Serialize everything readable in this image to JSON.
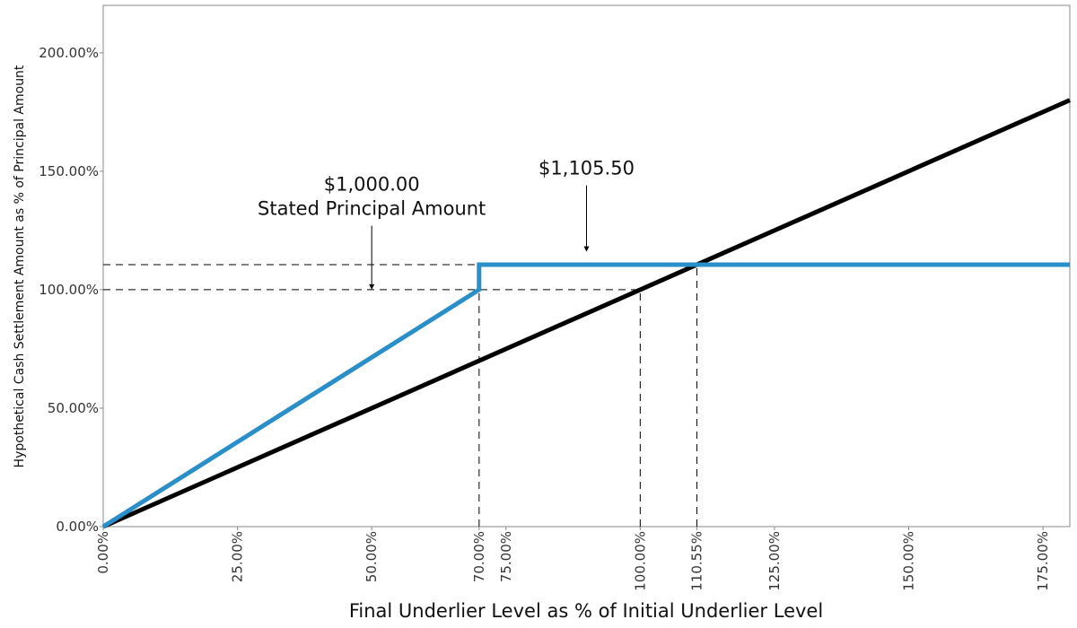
{
  "chart_data": {
    "type": "line",
    "xlabel": "Final Underlier Level as % of Initial Underlier Level",
    "ylabel": "Hypothetical Cash Settlement Amount as % of Principal Amount",
    "xlim": [
      0,
      180
    ],
    "ylim": [
      0,
      220
    ],
    "x_ticks": [
      0,
      25,
      50,
      70,
      75,
      100,
      110.55,
      125,
      150,
      175
    ],
    "x_tick_labels": [
      "0.00%",
      "25.00%",
      "50.00%",
      "70.00%",
      "75.00%",
      "100.00%",
      "110.55%",
      "125.00%",
      "150.00%",
      "175.00%"
    ],
    "y_ticks": [
      0,
      50,
      100,
      150,
      200
    ],
    "y_tick_labels": [
      "0.00%",
      "50.00%",
      "100.00%",
      "150.00%",
      "200.00%"
    ],
    "grid": false,
    "series": [
      {
        "color": "#2a8fc8",
        "points": [
          [
            0,
            0
          ],
          [
            70,
            100
          ],
          [
            70,
            110.55
          ],
          [
            180,
            110.55
          ]
        ]
      },
      {
        "color": "#000000",
        "points": [
          [
            0,
            0
          ],
          [
            180,
            180
          ]
        ]
      }
    ],
    "guides": [
      {
        "type": "h",
        "y": 110.55,
        "x_from": 0,
        "x_to": 70
      },
      {
        "type": "h",
        "y": 100,
        "x_from": 0,
        "x_to": 100
      },
      {
        "type": "v",
        "x": 70,
        "y_from": 0,
        "y_to": 100
      },
      {
        "type": "v",
        "x": 100,
        "y_from": 0,
        "y_to": 100
      },
      {
        "type": "v",
        "x": 110.55,
        "y_from": 0,
        "y_to": 110.55
      }
    ],
    "annotations": [
      {
        "lines": [
          "$1,000.00",
          "Stated Principal Amount"
        ],
        "arrow_x": 50,
        "arrow_y": 100,
        "arrow_from_y": 127
      },
      {
        "lines": [
          "$1,105.50"
        ],
        "arrow_x": 90,
        "arrow_y": 116,
        "arrow_from_y": 144
      }
    ]
  }
}
